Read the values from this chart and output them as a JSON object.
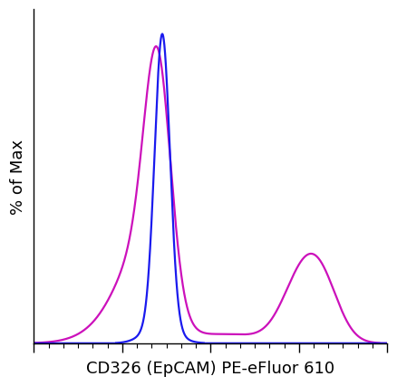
{
  "title": "",
  "xlabel": "CD326 (EpCAM) PE-eFluor 610",
  "ylabel": "% of Max",
  "xlabel_fontsize": 13,
  "ylabel_fontsize": 13,
  "background_color": "#ffffff",
  "plot_bg_color": "#ffffff",
  "line_blue_color": "#1a1aee",
  "line_magenta_color": "#cc11bb",
  "line_width": 1.6,
  "xlim": [
    0,
    1023
  ],
  "ylim": [
    0,
    1.08
  ]
}
